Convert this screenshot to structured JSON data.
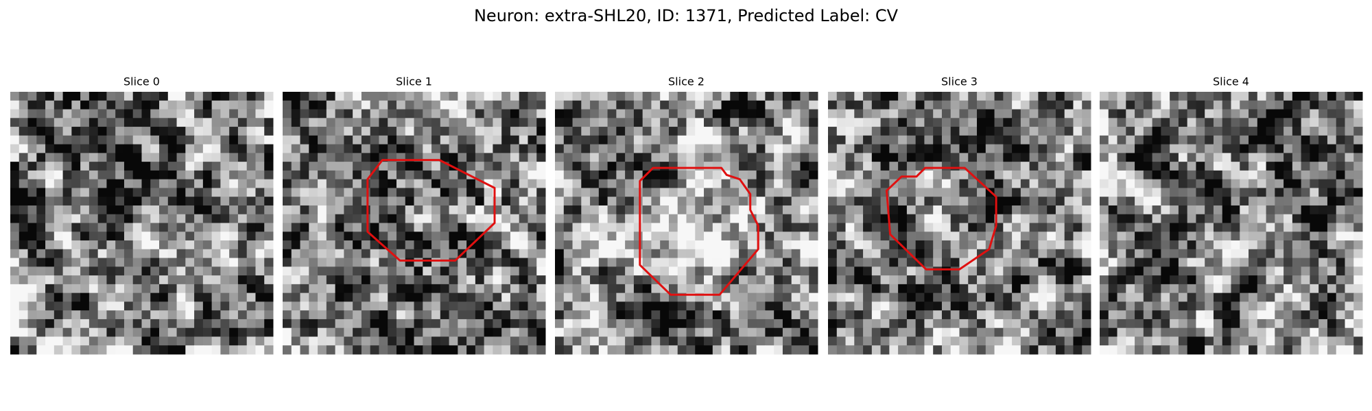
{
  "title": "Neuron: extra-SHL20, ID: 1371, Predicted Label: CV",
  "panels": [
    {
      "title": "Slice 0"
    },
    {
      "title": "Slice 1"
    },
    {
      "title": "Slice 2"
    },
    {
      "title": "Slice 3"
    },
    {
      "title": "Slice 4"
    }
  ]
}
